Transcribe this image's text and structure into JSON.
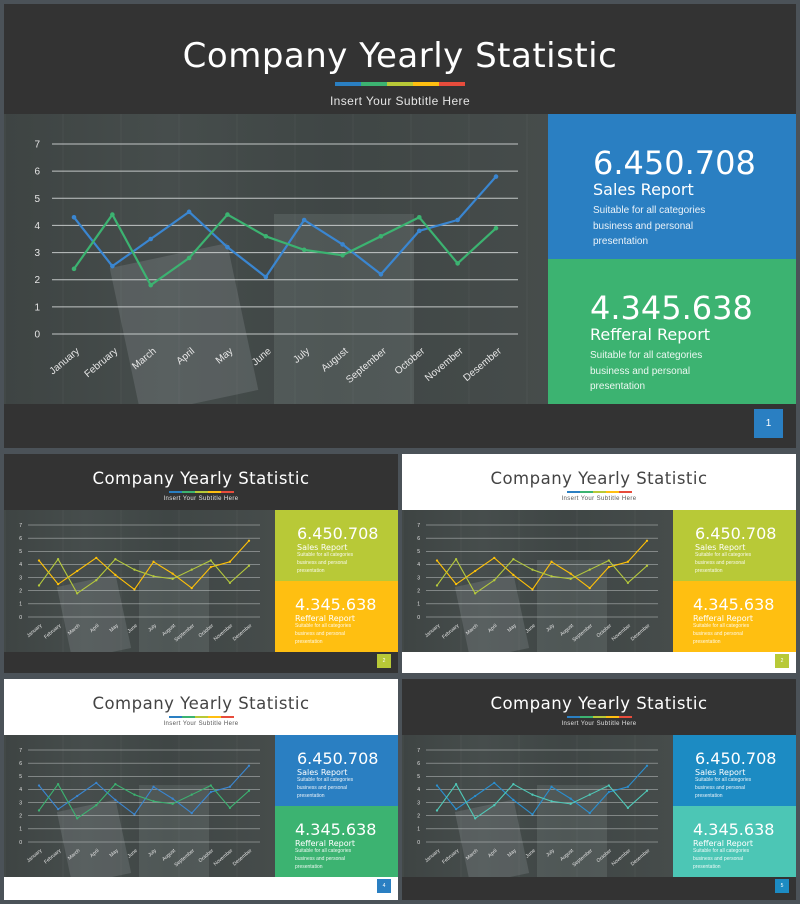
{
  "slides": [
    {
      "id": "main",
      "theme": {
        "header_bg": "#333333",
        "title_color": "#ffffff",
        "sub_color": "#e4e4e4",
        "footer_bg": "#333333",
        "series_colors": [
          "#3a86d1",
          "#3cb371"
        ],
        "panel1_bg": "#2a7fc2",
        "panel2_bg": "#3cb371",
        "pg_bg": "#2a7fc2"
      },
      "title": "Company Yearly Statistic",
      "subtitle": "Insert Your Subtitle Here",
      "panels": [
        {
          "value": "6.450.708",
          "title": "Sales Report",
          "desc": "Suitable for all categories business and personal presentation"
        },
        {
          "value": "4.345.638",
          "title": "Refferal Report",
          "desc": "Suitable for all categories business and personal presentation"
        }
      ],
      "page": "1"
    },
    {
      "id": "variant-dark-lime",
      "theme": {
        "header_bg": "#333333",
        "title_color": "#ffffff",
        "sub_color": "#e4e4e4",
        "footer_bg": "#333333",
        "series_colors": [
          "#ffc107",
          "#b5c93c"
        ],
        "panel1_bg": "#b8c937",
        "panel2_bg": "#ffbf11",
        "pg_bg": "#b8c937"
      },
      "title": "Company Yearly Statistic",
      "subtitle": "Insert Your Subtitle Here",
      "panels": [
        {
          "value": "6.450.708",
          "title": "Sales Report",
          "desc": "Suitable for all categories business and personal presentation"
        },
        {
          "value": "4.345.638",
          "title": "Refferal Report",
          "desc": "Suitable for all categories business and personal presentation"
        }
      ],
      "page": "2"
    },
    {
      "id": "variant-light-lime",
      "theme": {
        "header_bg": "#ffffff",
        "title_color": "#444444",
        "sub_color": "#555555",
        "footer_bg": "#ffffff",
        "series_colors": [
          "#ffc107",
          "#b5c93c"
        ],
        "panel1_bg": "#b8c937",
        "panel2_bg": "#ffbf11",
        "pg_bg": "#b8c937"
      },
      "title": "Company Yearly Statistic",
      "subtitle": "Insert Your Subtitle Here",
      "panels": [
        {
          "value": "6.450.708",
          "title": "Sales Report",
          "desc": "Suitable for all categories business and personal presentation"
        },
        {
          "value": "4.345.638",
          "title": "Refferal Report",
          "desc": "Suitable for all categories business and personal presentation"
        }
      ],
      "page": "2"
    },
    {
      "id": "variant-light-blue",
      "theme": {
        "header_bg": "#ffffff",
        "title_color": "#444444",
        "sub_color": "#555555",
        "footer_bg": "#ffffff",
        "series_colors": [
          "#3a86d1",
          "#3cb371"
        ],
        "panel1_bg": "#2a7fc2",
        "panel2_bg": "#3cb371",
        "pg_bg": "#2a7fc2"
      },
      "title": "Company Yearly Statistic",
      "subtitle": "Insert Your Subtitle Here",
      "panels": [
        {
          "value": "6.450.708",
          "title": "Sales Report",
          "desc": "Suitable for all categories business and personal presentation"
        },
        {
          "value": "4.345.638",
          "title": "Refferal Report",
          "desc": "Suitable for all categories business and personal presentation"
        }
      ],
      "page": "4"
    },
    {
      "id": "variant-dark-teal",
      "theme": {
        "header_bg": "#333333",
        "title_color": "#ffffff",
        "sub_color": "#e4e4e4",
        "footer_bg": "#333333",
        "series_colors": [
          "#2a8fd0",
          "#4fc9b8"
        ],
        "panel1_bg": "#1c8bc3",
        "panel2_bg": "#4cc6b5",
        "pg_bg": "#1c8bc3"
      },
      "title": "Company Yearly Statistic",
      "subtitle": "Insert Your Subtitle Here",
      "panels": [
        {
          "value": "6.450.708",
          "title": "Sales Report",
          "desc": "Suitable for all categories business and personal presentation"
        },
        {
          "value": "4.345.638",
          "title": "Refferal Report",
          "desc": "Suitable for all categories business and personal presentation"
        }
      ],
      "page": "5"
    }
  ],
  "accent_bar_colors": [
    "#2a7fc2",
    "#3cb371",
    "#b8c937",
    "#ffbf11",
    "#e74c3c"
  ],
  "chart_data": {
    "type": "line",
    "categories": [
      "January",
      "February",
      "March",
      "April",
      "May",
      "June",
      "July",
      "August",
      "September",
      "October",
      "November",
      "Desember"
    ],
    "series": [
      {
        "values": [
          4.3,
          2.5,
          3.5,
          4.5,
          3.2,
          2.1,
          4.2,
          3.3,
          2.2,
          3.8,
          4.2,
          5.8
        ]
      },
      {
        "values": [
          2.4,
          4.4,
          1.8,
          2.8,
          4.4,
          3.6,
          3.1,
          2.9,
          3.6,
          4.3,
          2.6,
          3.9
        ]
      }
    ],
    "ylim": [
      0,
      7
    ],
    "yticks": [
      "0",
      "1",
      "2",
      "3",
      "4",
      "5",
      "6",
      "7"
    ],
    "grid": true,
    "legend": "none"
  }
}
